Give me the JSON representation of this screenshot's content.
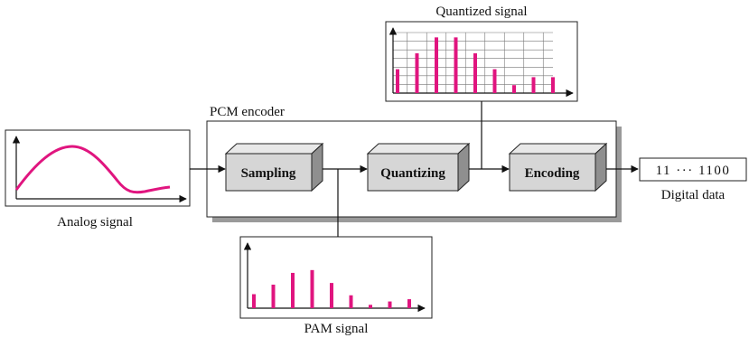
{
  "colors": {
    "signal": "#e0157f",
    "block_front": "#d6d6d6",
    "block_top": "#e8e8e8",
    "block_side": "#8f8f8f",
    "frame_shadow": "#9a9a9a"
  },
  "labels": {
    "encoder_title": "PCM encoder",
    "analog": "Analog signal",
    "pam": "PAM signal",
    "quantized": "Quantized signal",
    "digital": "Digital data",
    "bitstream": "11 ··· 1100"
  },
  "blocks": {
    "sampling": "Sampling",
    "quantizing": "Quantizing",
    "encoding": "Encoding"
  },
  "samples": {
    "pam_amplitudes": [
      0.25,
      0.42,
      0.63,
      0.68,
      0.45,
      0.23,
      0.06,
      0.12,
      0.16
    ],
    "quantized_levels": [
      2,
      4,
      6,
      6,
      4,
      2,
      0,
      1,
      1
    ],
    "quantization_level_count": 7
  }
}
